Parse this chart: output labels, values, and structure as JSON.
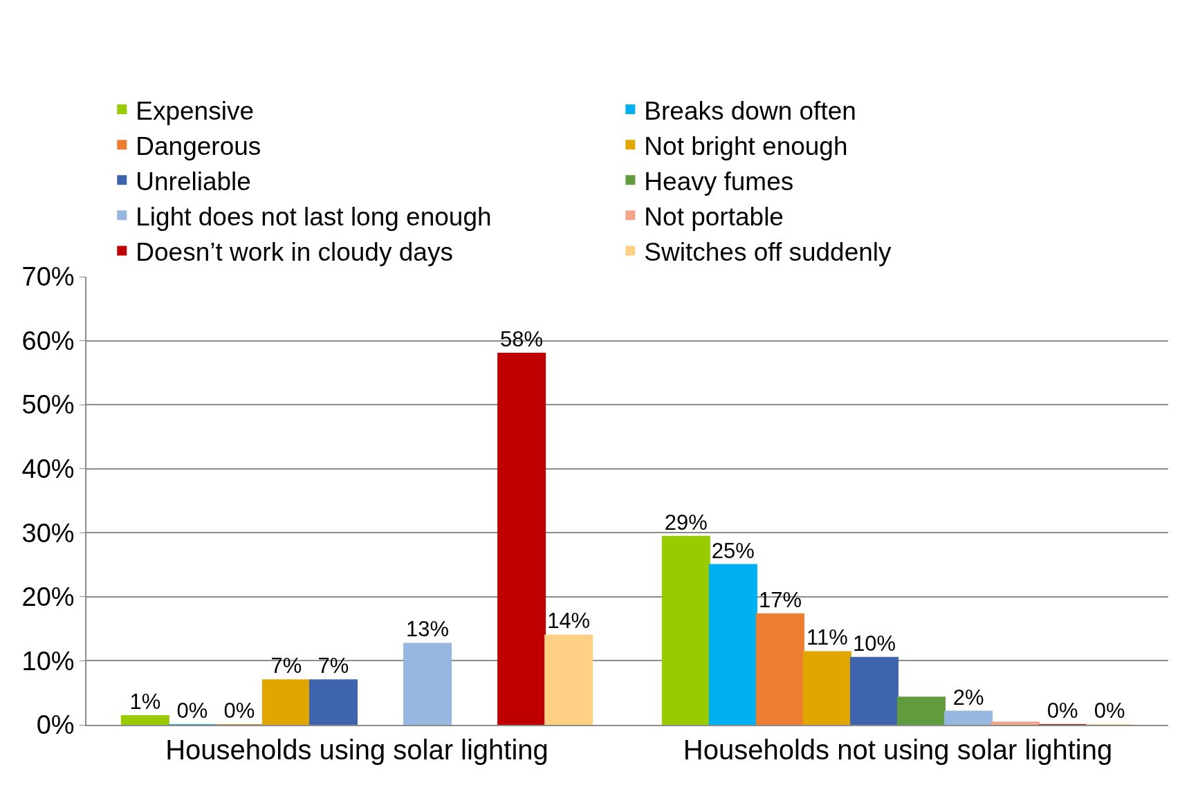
{
  "chart_data": {
    "type": "bar",
    "categories": [
      "Households using solar lighting",
      "Households not using solar lighting"
    ],
    "series": [
      {
        "name": "Expensive",
        "color": "#99cc00",
        "values": [
          1.4,
          29.4
        ],
        "value_labels": [
          "1%",
          "29%"
        ]
      },
      {
        "name": "Breaks down often",
        "color": "#00b0f0",
        "values": [
          0,
          25
        ],
        "value_labels": [
          "0%",
          "25%"
        ]
      },
      {
        "name": "Dangerous",
        "color": "#ed7d31",
        "values": [
          0,
          17.3
        ],
        "value_labels": [
          "0%",
          "17%"
        ]
      },
      {
        "name": "Not bright enough",
        "color": "#e2a600",
        "values": [
          7,
          11.4
        ],
        "value_labels": [
          "7%",
          "11%"
        ]
      },
      {
        "name": "Unreliable",
        "color": "#3d64ad",
        "values": [
          7,
          10.5
        ],
        "value_labels": [
          "7%",
          "10%"
        ]
      },
      {
        "name": "Heavy fumes",
        "color": "#609b3e",
        "values": [
          null,
          4.3
        ],
        "value_labels": [
          null,
          null
        ]
      },
      {
        "name": "Light does not last long enough",
        "color": "#95b7e0",
        "values": [
          12.7,
          2.1
        ],
        "value_labels": [
          "13%",
          "2%"
        ]
      },
      {
        "name": "Not portable",
        "color": "#f2a58a",
        "values": [
          null,
          0.4
        ],
        "value_labels": [
          null,
          null
        ]
      },
      {
        "name": "Doesn’t work in cloudy days",
        "color": "#c00000",
        "values": [
          58,
          0
        ],
        "value_labels": [
          "58%",
          "0%"
        ]
      },
      {
        "name": "Switches off suddenly",
        "color": "#ffd083",
        "values": [
          14,
          0
        ],
        "value_labels": [
          "14%",
          "0%"
        ]
      }
    ],
    "ylim": [
      0,
      70
    ],
    "yticks": [
      {
        "value": 0,
        "label": "0%"
      },
      {
        "value": 10,
        "label": "10%"
      },
      {
        "value": 20,
        "label": "20%"
      },
      {
        "value": 30,
        "label": "30%"
      },
      {
        "value": 40,
        "label": "40%"
      },
      {
        "value": 50,
        "label": "50%"
      },
      {
        "value": 60,
        "label": "60%"
      },
      {
        "value": 70,
        "label": "70%"
      }
    ],
    "grid": "y",
    "legend": "top"
  }
}
